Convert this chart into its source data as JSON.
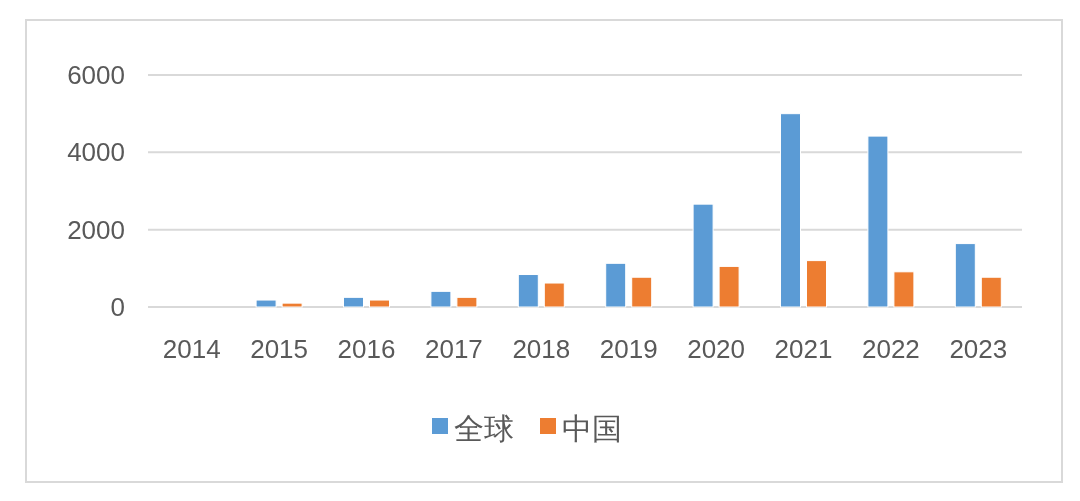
{
  "chart_data": {
    "type": "bar",
    "categories": [
      "2014",
      "2015",
      "2016",
      "2017",
      "2018",
      "2019",
      "2020",
      "2021",
      "2022",
      "2023"
    ],
    "series": [
      {
        "name": "全球",
        "color": "#5b9bd5",
        "values": [
          0,
          180,
          250,
          405,
          840,
          1130,
          2660,
          5000,
          4420,
          1640
        ]
      },
      {
        "name": "中国",
        "color": "#ed7d31",
        "values": [
          0,
          100,
          180,
          250,
          620,
          770,
          1050,
          1200,
          910,
          770
        ]
      }
    ],
    "ylim": [
      0,
      6000
    ],
    "yticks": [
      0,
      2000,
      4000,
      6000
    ],
    "grid": "y",
    "legend": "bottom"
  }
}
